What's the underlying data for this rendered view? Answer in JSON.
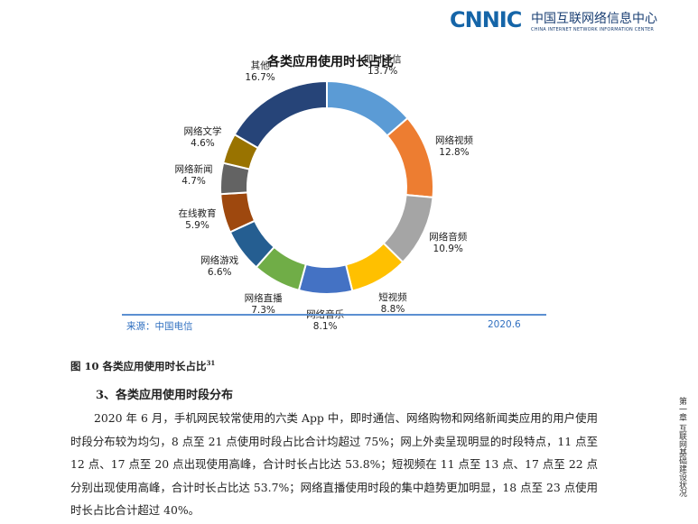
{
  "header": {
    "logo_text": "CNNIC",
    "org_cn": "中国互联网络信息中心",
    "org_en": "CHINA INTERNET NETWORK INFORMATION CENTER"
  },
  "chart_data": {
    "type": "pie",
    "title": "各类应用使用时长占比",
    "slices": [
      {
        "name": "即时通信",
        "value": 13.7,
        "label": "13.7%",
        "color": "#5b9bd5"
      },
      {
        "name": "网络视频",
        "value": 12.8,
        "label": "12.8%",
        "color": "#ed7d31"
      },
      {
        "name": "网络音频",
        "value": 10.9,
        "label": "10.9%",
        "color": "#a5a5a5"
      },
      {
        "name": "短视频",
        "value": 8.8,
        "label": "8.8%",
        "color": "#ffc000"
      },
      {
        "name": "网络音乐",
        "value": 8.1,
        "label": "8.1%",
        "color": "#4472c4"
      },
      {
        "name": "网络直播",
        "value": 7.3,
        "label": "7.3%",
        "color": "#70ad47"
      },
      {
        "name": "网络游戏",
        "value": 6.6,
        "label": "6.6%",
        "color": "#255e91"
      },
      {
        "name": "在线教育",
        "value": 5.9,
        "label": "5.9%",
        "color": "#9e480e"
      },
      {
        "name": "网络新闻",
        "value": 4.7,
        "label": "4.7%",
        "color": "#636363"
      },
      {
        "name": "网络文学",
        "value": 4.6,
        "label": "4.6%",
        "color": "#997300"
      },
      {
        "name": "其他",
        "value": 16.7,
        "label": "16.7%",
        "color": "#264478"
      }
    ]
  },
  "source": {
    "label": "来源：中国电信",
    "date": "2020.6"
  },
  "figure_caption": {
    "text": "图 10   各类应用使用时长占比",
    "footnote": "31"
  },
  "section_heading": "3、各类应用使用时段分布",
  "paragraph": "2020 年 6 月，手机网民较常使用的六类 App 中，即时通信、网络购物和网络新闻类应用的用户使用时段分布较为均匀，8 点至 21 点使用时段占比合计均超过 75%；网上外卖呈现明显的时段特点，11 点至 12 点、17 点至 20 点出现使用高峰，合计时长占比达 53.8%；短视频在 11 点至 13 点、17 点至 22 点分别出现使用高峰，合计时长占比达 53.7%；网络直播使用时段的集中趋势更加明显，18 点至 23 点使用时长占比合计超过 40%。",
  "side_text": "第一章 互联网基础建设状况"
}
